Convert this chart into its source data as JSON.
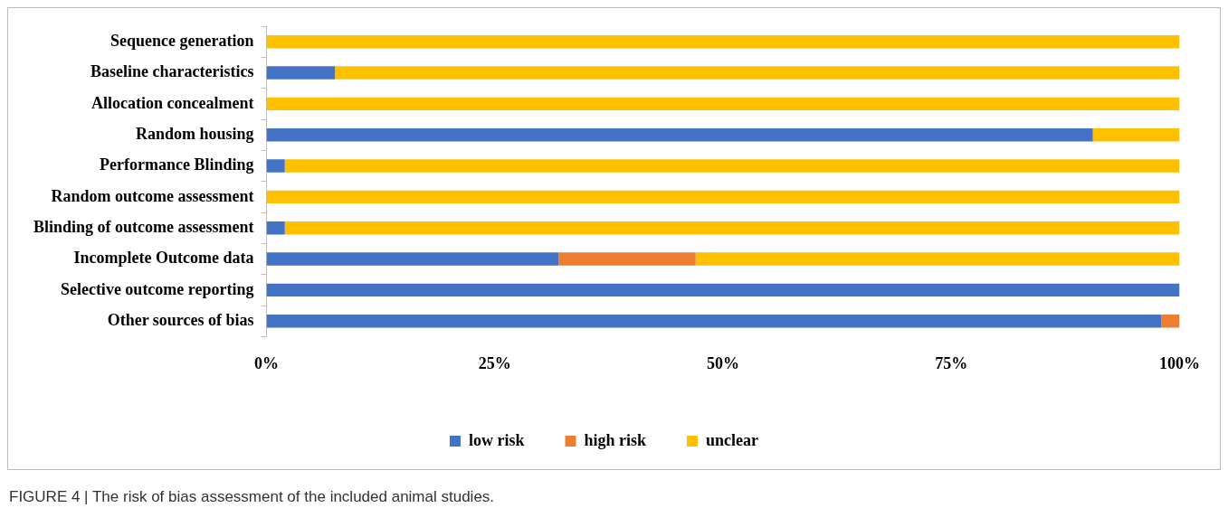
{
  "chart_data": {
    "type": "bar",
    "orientation": "horizontal",
    "stacked": true,
    "categories": [
      "Sequence generation",
      "Baseline characteristics",
      "Allocation concealment",
      "Random housing",
      "Performance Blinding",
      "Random outcome assessment",
      "Blinding of outcome assessment",
      "Incomplete Outcome data",
      "Selective outcome reporting",
      "Other sources of bias"
    ],
    "series": [
      {
        "name": "low risk",
        "color": "#4472c4",
        "values": [
          0,
          7.5,
          0,
          90.5,
          2,
          0,
          2,
          32,
          100,
          98
        ]
      },
      {
        "name": "high risk",
        "color": "#ed7d31",
        "values": [
          0,
          0,
          0,
          0,
          0,
          0,
          0,
          15,
          0,
          2
        ]
      },
      {
        "name": "unclear",
        "color": "#ffc000",
        "values": [
          100,
          92.5,
          100,
          9.5,
          98,
          100,
          98,
          53,
          0,
          0
        ]
      }
    ],
    "xlim": [
      0,
      100
    ],
    "xticks": [
      {
        "value": 0,
        "label": "0%"
      },
      {
        "value": 25,
        "label": "25%"
      },
      {
        "value": 50,
        "label": "50%"
      },
      {
        "value": 75,
        "label": "75%"
      },
      {
        "value": 100,
        "label": "100%"
      }
    ],
    "grid": false,
    "legend": "bottom",
    "annotations": [
      "FIGURE 4 | The risk of bias assessment of the included animal studies."
    ]
  }
}
